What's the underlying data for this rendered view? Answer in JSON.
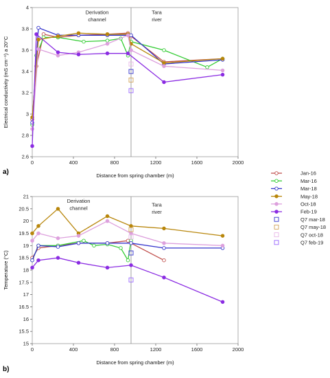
{
  "chart_data": [
    {
      "type": "line",
      "panel_label": "a)",
      "xlabel": "Distance from spring chamber (m)",
      "ylabel": "Electrical conductivity (mS cm⁻¹) a 20°C",
      "xlim": [
        0,
        2000
      ],
      "ylim": [
        2.6,
        4.0
      ],
      "xticks": [
        0,
        400,
        800,
        1200,
        1600,
        2000
      ],
      "yticks": [
        2.6,
        2.8,
        3.0,
        3.2,
        3.4,
        3.6,
        3.8,
        4.0
      ],
      "ytick_labels": [
        "2.6",
        "2.8",
        "3",
        "3.2",
        "3.4",
        "3.6",
        "3.8",
        "4"
      ],
      "vline_x": 960,
      "annotations": [
        {
          "text": "Derivation",
          "x": 630,
          "y": 3.94
        },
        {
          "text": "channel",
          "x": 630,
          "y": 3.87
        },
        {
          "text": "Tara",
          "x": 1210,
          "y": 3.94
        },
        {
          "text": "river",
          "x": 1210,
          "y": 3.87
        }
      ],
      "series": [
        {
          "name": "Jan-16",
          "color": "#c0504d",
          "marker": "open",
          "x": [
            0,
            40,
            110,
            250,
            450,
            730,
            930,
            960,
            1280,
            1850
          ],
          "y": [
            2.95,
            3.45,
            3.75,
            3.72,
            3.74,
            3.75,
            3.76,
            3.73,
            3.49,
            3.52
          ]
        },
        {
          "name": "Mar-16",
          "color": "#33cc33",
          "marker": "open",
          "x": [
            0,
            40,
            110,
            250,
            500,
            730,
            860,
            930,
            960,
            1280,
            1700,
            1850
          ],
          "y": [
            2.9,
            3.55,
            3.72,
            3.72,
            3.68,
            3.69,
            3.71,
            3.55,
            3.68,
            3.6,
            3.44,
            3.52
          ]
        },
        {
          "name": "Mar-18",
          "color": "#3333cc",
          "marker": "open",
          "x": [
            0,
            60,
            250,
            450,
            730,
            960,
            1280,
            1850
          ],
          "y": [
            2.92,
            3.81,
            3.74,
            3.74,
            3.74,
            3.74,
            3.47,
            3.51
          ]
        },
        {
          "name": "May-18",
          "color": "#b8860b",
          "marker": "filled",
          "x": [
            0,
            60,
            250,
            450,
            730,
            930,
            960,
            1280,
            1850
          ],
          "y": [
            2.97,
            3.7,
            3.73,
            3.76,
            3.75,
            3.75,
            3.66,
            3.48,
            3.52
          ]
        },
        {
          "name": "Oct-18",
          "color": "#dda0dd",
          "marker": "filled",
          "x": [
            0,
            60,
            250,
            450,
            730,
            930,
            960,
            1280,
            1850
          ],
          "y": [
            2.86,
            3.61,
            3.55,
            3.58,
            3.66,
            3.74,
            3.6,
            3.45,
            3.41
          ]
        },
        {
          "name": "Feb-19",
          "color": "#8a2be2",
          "marker": "filled",
          "x": [
            0,
            40,
            250,
            450,
            730,
            930,
            1280,
            1850
          ],
          "y": [
            2.7,
            3.75,
            3.58,
            3.56,
            3.57,
            3.57,
            3.3,
            3.37
          ]
        }
      ],
      "q7_points": [
        {
          "name": "Q7 mar-18",
          "color": "#3333cc",
          "x": 960,
          "y": 3.4
        },
        {
          "name": "Q7 may-18",
          "color": "#d2a35a",
          "x": 960,
          "y": 3.32
        },
        {
          "name": "Q7 oct-18",
          "color": "#e8b8e8",
          "x": 960,
          "y": 3.47
        },
        {
          "name": "Q7 feb-19",
          "color": "#9966ff",
          "x": 960,
          "y": 3.22
        }
      ]
    },
    {
      "type": "line",
      "panel_label": "b)",
      "xlabel": "Distance from spring chamber (m)",
      "ylabel": "Temperature (°C)",
      "xlim": [
        0,
        2000
      ],
      "ylim": [
        15,
        21
      ],
      "xticks": [
        0,
        400,
        800,
        1200,
        1600,
        2000
      ],
      "yticks": [
        15,
        15.5,
        16,
        16.5,
        17,
        17.5,
        18,
        18.5,
        19,
        19.5,
        20,
        20.5,
        21
      ],
      "ytick_labels": [
        "15",
        "15.5",
        "16",
        "16.5",
        "17",
        "17.5",
        "18",
        "18.5",
        "19",
        "19.5",
        "20",
        "20.5",
        "21"
      ],
      "vline_x": 960,
      "annotations": [
        {
          "text": "Derivation",
          "x": 450,
          "y": 20.75
        },
        {
          "text": "channel",
          "x": 450,
          "y": 20.45
        },
        {
          "text": "Tara",
          "x": 1210,
          "y": 20.6
        },
        {
          "text": "river",
          "x": 1210,
          "y": 20.3
        }
      ],
      "series": [
        {
          "name": "Jan-16",
          "color": "#c0504d",
          "marker": "open",
          "x": [
            0,
            60,
            250,
            450,
            730,
            930,
            960,
            1280
          ],
          "y": [
            18.5,
            18.9,
            19.0,
            19.1,
            19.1,
            19.2,
            19.1,
            18.4
          ]
        },
        {
          "name": "Mar-16",
          "color": "#33cc33",
          "marker": "open",
          "x": [
            0,
            60,
            250,
            500,
            600,
            730,
            860,
            930,
            960
          ],
          "y": [
            18.4,
            19.0,
            19.0,
            19.2,
            19.0,
            19.05,
            18.9,
            18.4,
            19.2
          ]
        },
        {
          "name": "Mar-18",
          "color": "#3333cc",
          "marker": "open",
          "x": [
            0,
            60,
            250,
            450,
            730,
            960,
            1280,
            1850
          ],
          "y": [
            18.4,
            19.0,
            18.95,
            19.1,
            19.1,
            19.1,
            18.9,
            18.9
          ]
        },
        {
          "name": "May-18",
          "color": "#b8860b",
          "marker": "filled",
          "x": [
            0,
            60,
            250,
            450,
            730,
            960,
            1280,
            1850
          ],
          "y": [
            19.5,
            19.8,
            20.5,
            19.5,
            20.2,
            19.8,
            19.7,
            19.4
          ]
        },
        {
          "name": "Oct-18",
          "color": "#dda0dd",
          "marker": "filled",
          "x": [
            0,
            60,
            250,
            450,
            730,
            960,
            1280,
            1850
          ],
          "y": [
            19.2,
            19.5,
            19.3,
            19.4,
            20.0,
            19.5,
            19.1,
            19.0
          ]
        },
        {
          "name": "Feb-19",
          "color": "#8a2be2",
          "marker": "filled",
          "x": [
            0,
            60,
            250,
            450,
            730,
            960,
            1280,
            1850
          ],
          "y": [
            18.1,
            18.4,
            18.5,
            18.3,
            18.1,
            18.2,
            17.7,
            16.7
          ]
        }
      ],
      "q7_points": [
        {
          "name": "Q7 mar-18",
          "color": "#3333cc",
          "x": 960,
          "y": 18.7
        },
        {
          "name": "Q7 may-18",
          "color": "#d2a35a",
          "x": 960,
          "y": 19.65
        },
        {
          "name": "Q7 oct-18",
          "color": "#e8b8e8",
          "x": 960,
          "y": 19.35
        },
        {
          "name": "Q7 feb-19",
          "color": "#9966ff",
          "x": 960,
          "y": 17.6
        }
      ]
    }
  ],
  "legend": [
    {
      "label": "Jan-16",
      "color": "#c0504d",
      "kind": "line-open"
    },
    {
      "label": "Mar-16",
      "color": "#33cc33",
      "kind": "line-open"
    },
    {
      "label": "Mar-18",
      "color": "#3333cc",
      "kind": "line-open"
    },
    {
      "label": "May-18",
      "color": "#b8860b",
      "kind": "line-filled"
    },
    {
      "label": "Oct-18",
      "color": "#dda0dd",
      "kind": "line-filled"
    },
    {
      "label": "Feb-19",
      "color": "#8a2be2",
      "kind": "line-filled"
    },
    {
      "label": "Q7 mar-18",
      "color": "#3333cc",
      "kind": "square"
    },
    {
      "label": "Q7 may-18",
      "color": "#d2a35a",
      "kind": "square"
    },
    {
      "label": "Q7 oct-18",
      "color": "#e8b8e8",
      "kind": "square"
    },
    {
      "label": "Q7 feb-19",
      "color": "#9966ff",
      "kind": "square"
    }
  ]
}
